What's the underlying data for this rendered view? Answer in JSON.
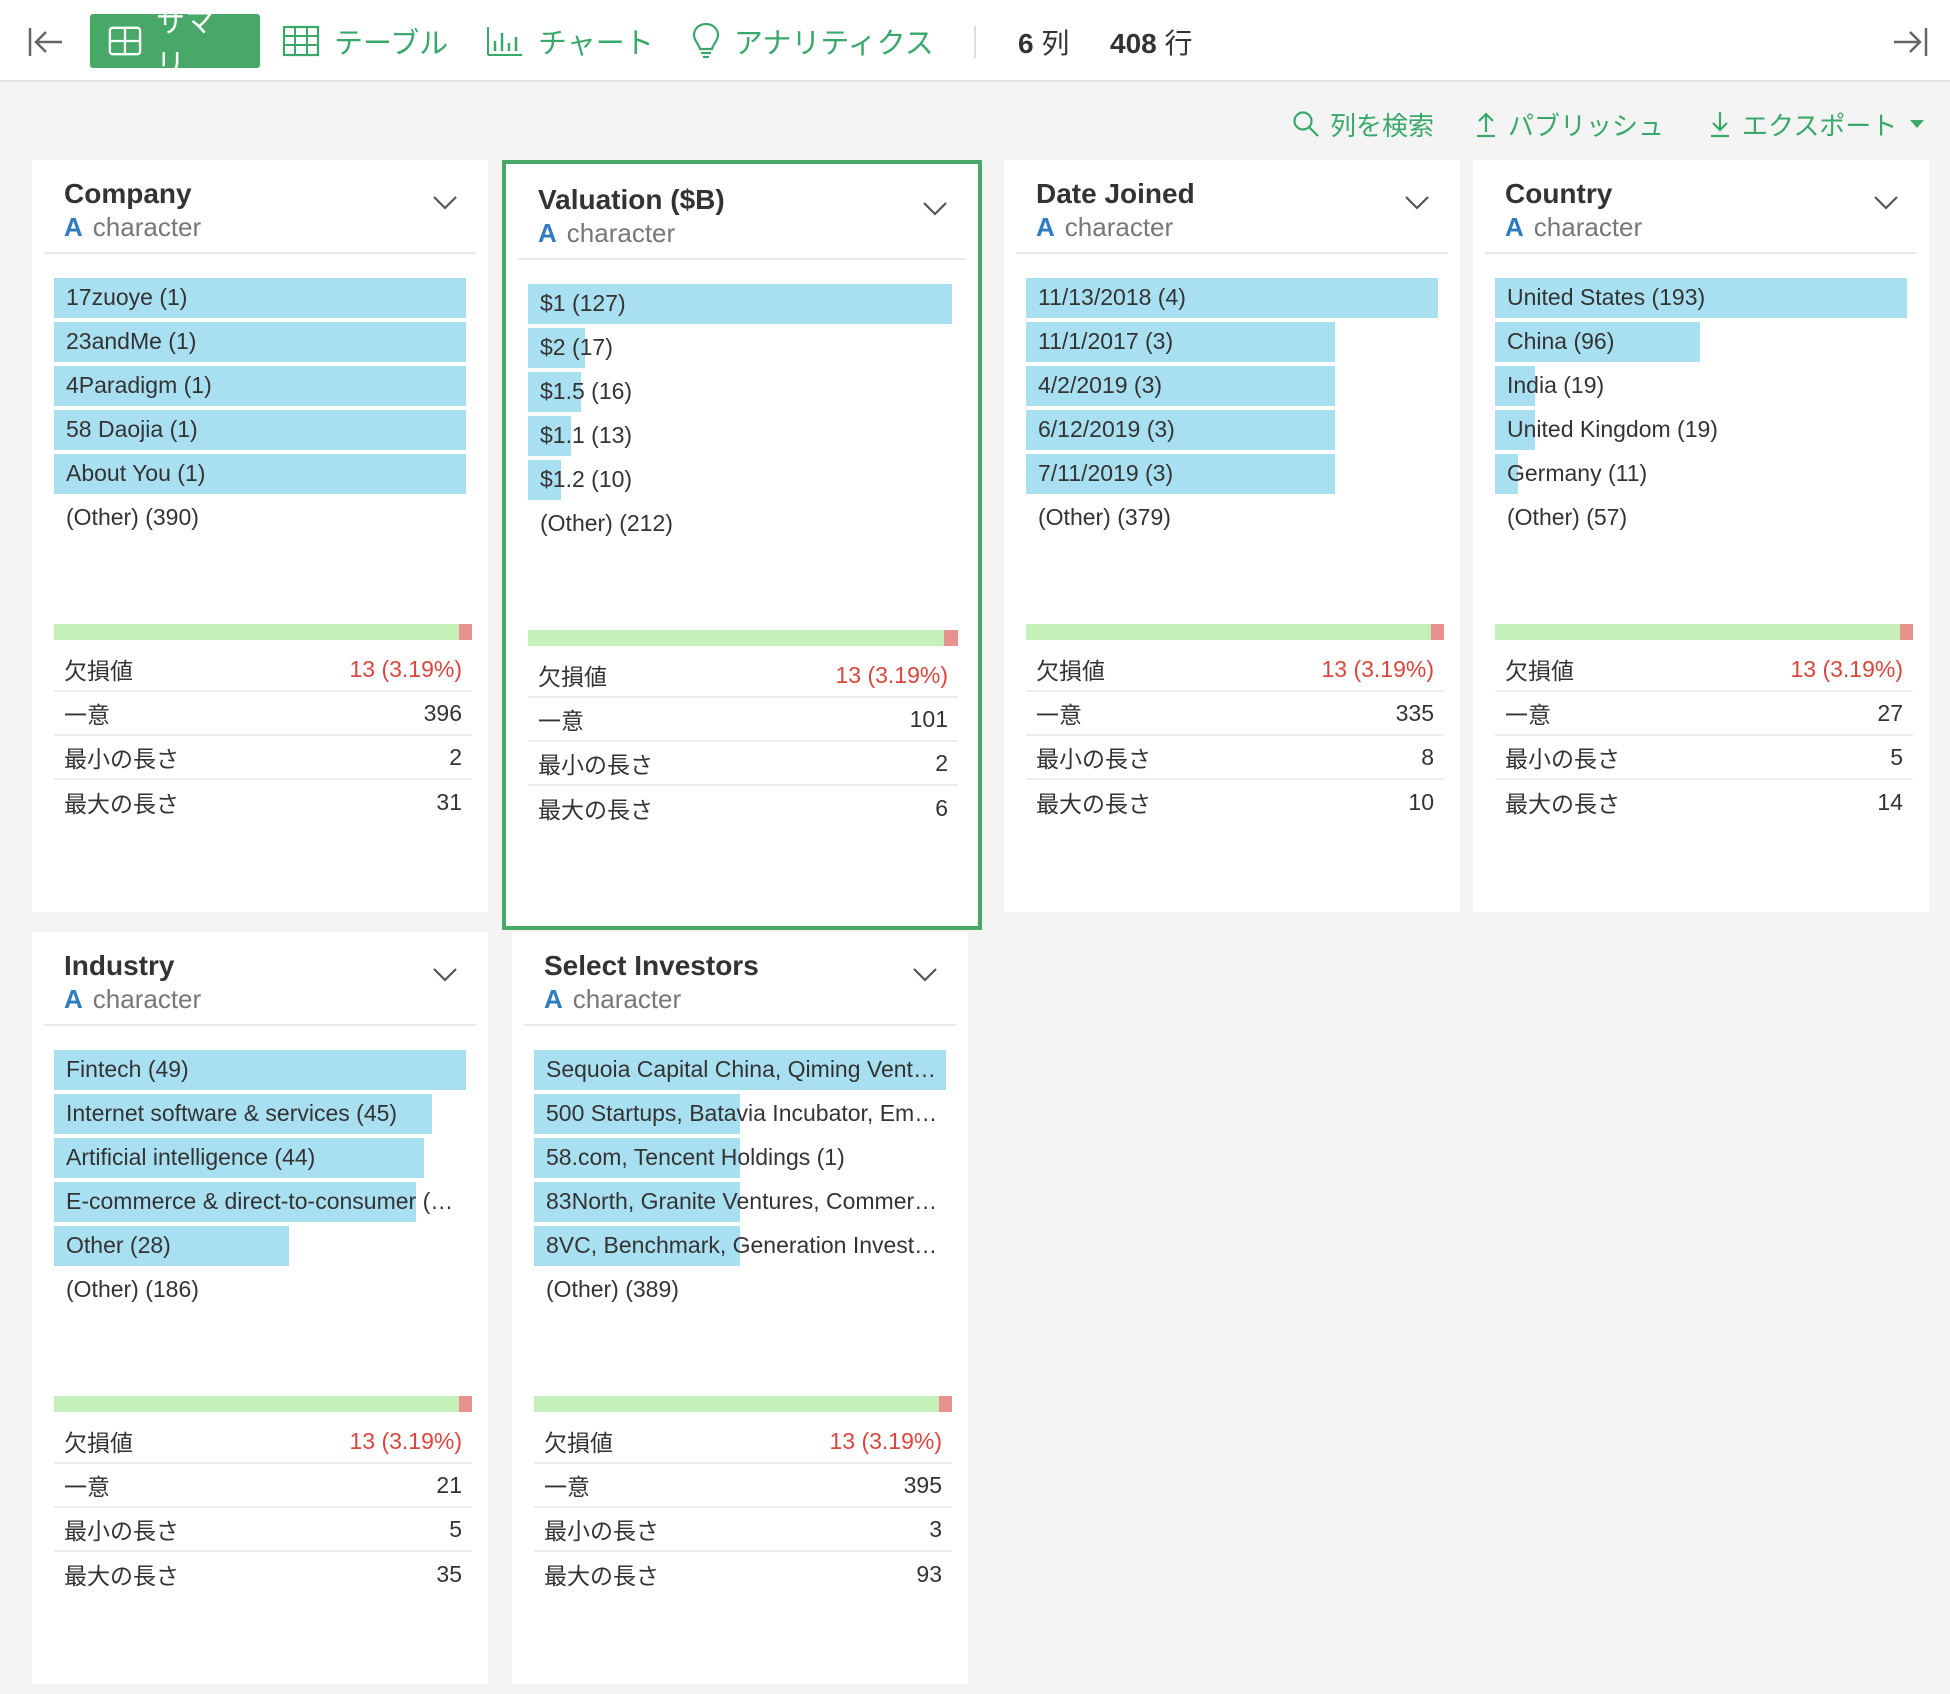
{
  "toolbar": {
    "tabs": [
      {
        "label": "サマリ",
        "icon": "summary-grid-icon"
      },
      {
        "label": "テーブル",
        "icon": "table-icon"
      },
      {
        "label": "チャート",
        "icon": "bar-chart-icon"
      },
      {
        "label": "アナリティクス",
        "icon": "lightbulb-icon"
      }
    ],
    "columns_value": "6",
    "columns_unit": "列",
    "rows_value": "408",
    "rows_unit": "行"
  },
  "actions": {
    "search": "列を検索",
    "publish": "パブリッシュ",
    "export": "エクスポート"
  },
  "stat_labels": {
    "missing": "欠損値",
    "unique": "一意",
    "min_length": "最小の長さ",
    "max_length": "最大の長さ"
  },
  "type_glyph": "A",
  "colors": {
    "accent": "#47a868",
    "bar": "#a9e0f1",
    "quality_ok": "#c6f0b9",
    "quality_missing": "#e8928f",
    "missing_text": "#d9463d"
  },
  "cards": [
    {
      "title": "Company",
      "type": "character",
      "bars": [
        {
          "label": "17zuoye (1)",
          "fraction": 1.0
        },
        {
          "label": "23andMe (1)",
          "fraction": 1.0
        },
        {
          "label": "4Paradigm (1)",
          "fraction": 1.0
        },
        {
          "label": "58 Daojia (1)",
          "fraction": 1.0
        },
        {
          "label": "About You (1)",
          "fraction": 1.0
        }
      ],
      "other": "(Other) (390)",
      "missing_fraction": 0.0319,
      "stats": {
        "missing": "13 (3.19%)",
        "unique": "396",
        "min_length": "2",
        "max_length": "31"
      }
    },
    {
      "title": "Valuation ($B)",
      "type": "character",
      "bars": [
        {
          "label": "$1 (127)",
          "fraction": 1.0
        },
        {
          "label": "$2 (17)",
          "fraction": 0.134
        },
        {
          "label": "$1.5 (16)",
          "fraction": 0.126
        },
        {
          "label": "$1.1 (13)",
          "fraction": 0.102
        },
        {
          "label": "$1.2 (10)",
          "fraction": 0.079
        }
      ],
      "other": "(Other) (212)",
      "missing_fraction": 0.0319,
      "stats": {
        "missing": "13 (3.19%)",
        "unique": "101",
        "min_length": "2",
        "max_length": "6"
      }
    },
    {
      "title": "Date Joined",
      "type": "character",
      "bars": [
        {
          "label": "11/13/2018 (4)",
          "fraction": 1.0
        },
        {
          "label": "11/1/2017 (3)",
          "fraction": 0.75
        },
        {
          "label": "4/2/2019 (3)",
          "fraction": 0.75
        },
        {
          "label": "6/12/2019 (3)",
          "fraction": 0.75
        },
        {
          "label": "7/11/2019 (3)",
          "fraction": 0.75
        }
      ],
      "other": "(Other) (379)",
      "missing_fraction": 0.0319,
      "stats": {
        "missing": "13 (3.19%)",
        "unique": "335",
        "min_length": "8",
        "max_length": "10"
      }
    },
    {
      "title": "Country",
      "type": "character",
      "bars": [
        {
          "label": "United States (193)",
          "fraction": 1.0
        },
        {
          "label": "China (96)",
          "fraction": 0.497
        },
        {
          "label": "India (19)",
          "fraction": 0.098
        },
        {
          "label": "United Kingdom (19)",
          "fraction": 0.098
        },
        {
          "label": "Germany (11)",
          "fraction": 0.057
        }
      ],
      "other": "(Other) (57)",
      "missing_fraction": 0.0319,
      "stats": {
        "missing": "13 (3.19%)",
        "unique": "27",
        "min_length": "5",
        "max_length": "14"
      }
    },
    {
      "title": "Industry",
      "type": "character",
      "bars": [
        {
          "label": "Fintech (49)",
          "fraction": 1.0
        },
        {
          "label": "Internet software & services (45)",
          "fraction": 0.918
        },
        {
          "label": "Artificial intelligence (44)",
          "fraction": 0.898
        },
        {
          "label": "E-commerce & direct-to-consumer (…",
          "fraction": 0.878
        },
        {
          "label": "Other (28)",
          "fraction": 0.571
        }
      ],
      "other": "(Other) (186)",
      "missing_fraction": 0.0319,
      "stats": {
        "missing": "13 (3.19%)",
        "unique": "21",
        "min_length": "5",
        "max_length": "35"
      }
    },
    {
      "title": "Select Investors",
      "type": "character",
      "bars": [
        {
          "label": "Sequoia Capital China, Qiming Vent…",
          "fraction": 1.0
        },
        {
          "label": "500 Startups, Batavia Incubator, Em…",
          "fraction": 0.5
        },
        {
          "label": "58.com, Tencent Holdings (1)",
          "fraction": 0.5
        },
        {
          "label": "83North, Granite Ventures, Commer…",
          "fraction": 0.5
        },
        {
          "label": "8VC, Benchmark, Generation Invest…",
          "fraction": 0.5
        }
      ],
      "other": "(Other) (389)",
      "missing_fraction": 0.0319,
      "stats": {
        "missing": "13 (3.19%)",
        "unique": "395",
        "min_length": "3",
        "max_length": "93"
      }
    }
  ]
}
